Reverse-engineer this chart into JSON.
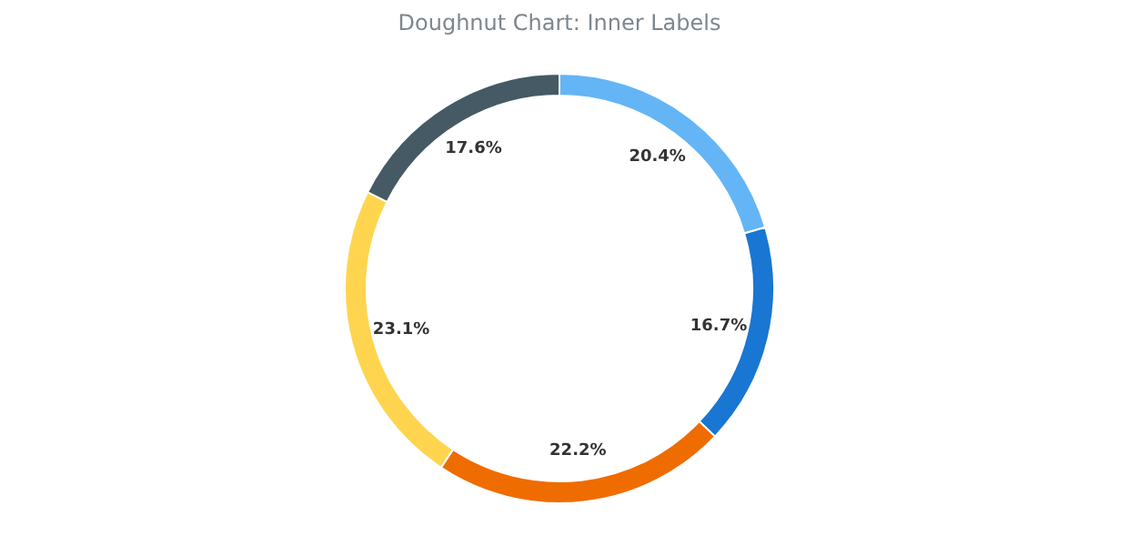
{
  "chart_data": {
    "type": "donut",
    "title": "Doughnut Chart: Inner Labels",
    "categories": [
      null,
      null,
      null,
      null,
      null
    ],
    "values": [
      20.4,
      16.7,
      22.2,
      23.1,
      17.6
    ],
    "colors": [
      "#64b5f6",
      "#1976d2",
      "#ef6c00",
      "#ffd54f",
      "#455a64"
    ],
    "value_labels": [
      "20.4%",
      "16.7%",
      "22.2%",
      "23.1%",
      "17.6%"
    ]
  }
}
